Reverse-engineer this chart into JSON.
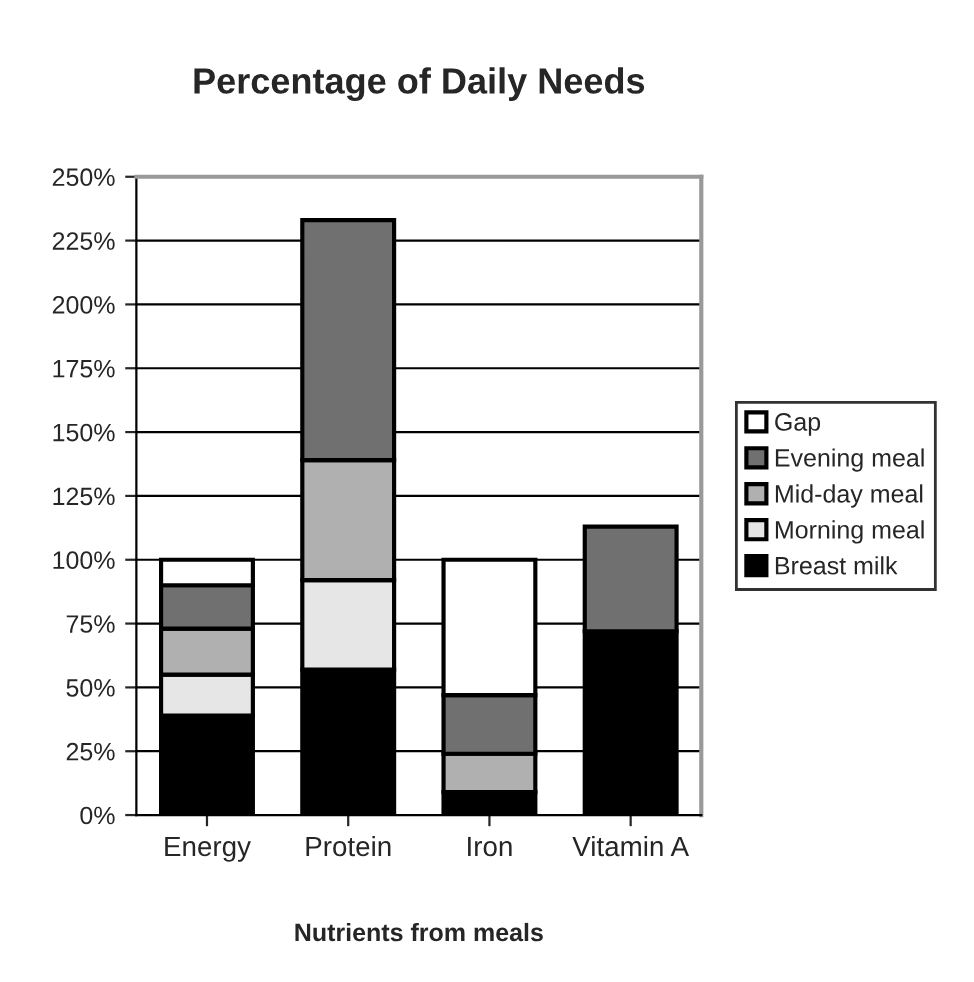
{
  "chart_data": {
    "type": "bar",
    "title": "Percentage of Daily Needs",
    "xlabel": "Nutrients from meals",
    "categories": [
      "Energy",
      "Protein",
      "Iron",
      "Vitamin A"
    ],
    "stacked": true,
    "series": [
      {
        "name": "Breast milk",
        "color": "#000000",
        "values": [
          39,
          57,
          9,
          72
        ]
      },
      {
        "name": "Morning meal",
        "color": "#e6e6e6",
        "values": [
          16,
          35,
          0,
          0
        ]
      },
      {
        "name": "Mid-day meal",
        "color": "#b0b0b0",
        "values": [
          18,
          47,
          15,
          0
        ]
      },
      {
        "name": "Evening meal",
        "color": "#707070",
        "values": [
          17,
          94,
          23,
          41
        ]
      },
      {
        "name": "Gap",
        "color": "#ffffff",
        "values": [
          10,
          0,
          53,
          0
        ]
      }
    ],
    "ylim": [
      0,
      250
    ],
    "yticks": [
      {
        "value": 0,
        "label": "0%"
      },
      {
        "value": 25,
        "label": "25%"
      },
      {
        "value": 50,
        "label": "50%"
      },
      {
        "value": 75,
        "label": "75%"
      },
      {
        "value": 100,
        "label": "100%"
      },
      {
        "value": 125,
        "label": "125%"
      },
      {
        "value": 150,
        "label": "150%"
      },
      {
        "value": 175,
        "label": "175%"
      },
      {
        "value": 200,
        "label": "200%"
      },
      {
        "value": 225,
        "label": "225%"
      },
      {
        "value": 250,
        "label": "250%"
      }
    ],
    "grid": "y",
    "legend": "right"
  }
}
